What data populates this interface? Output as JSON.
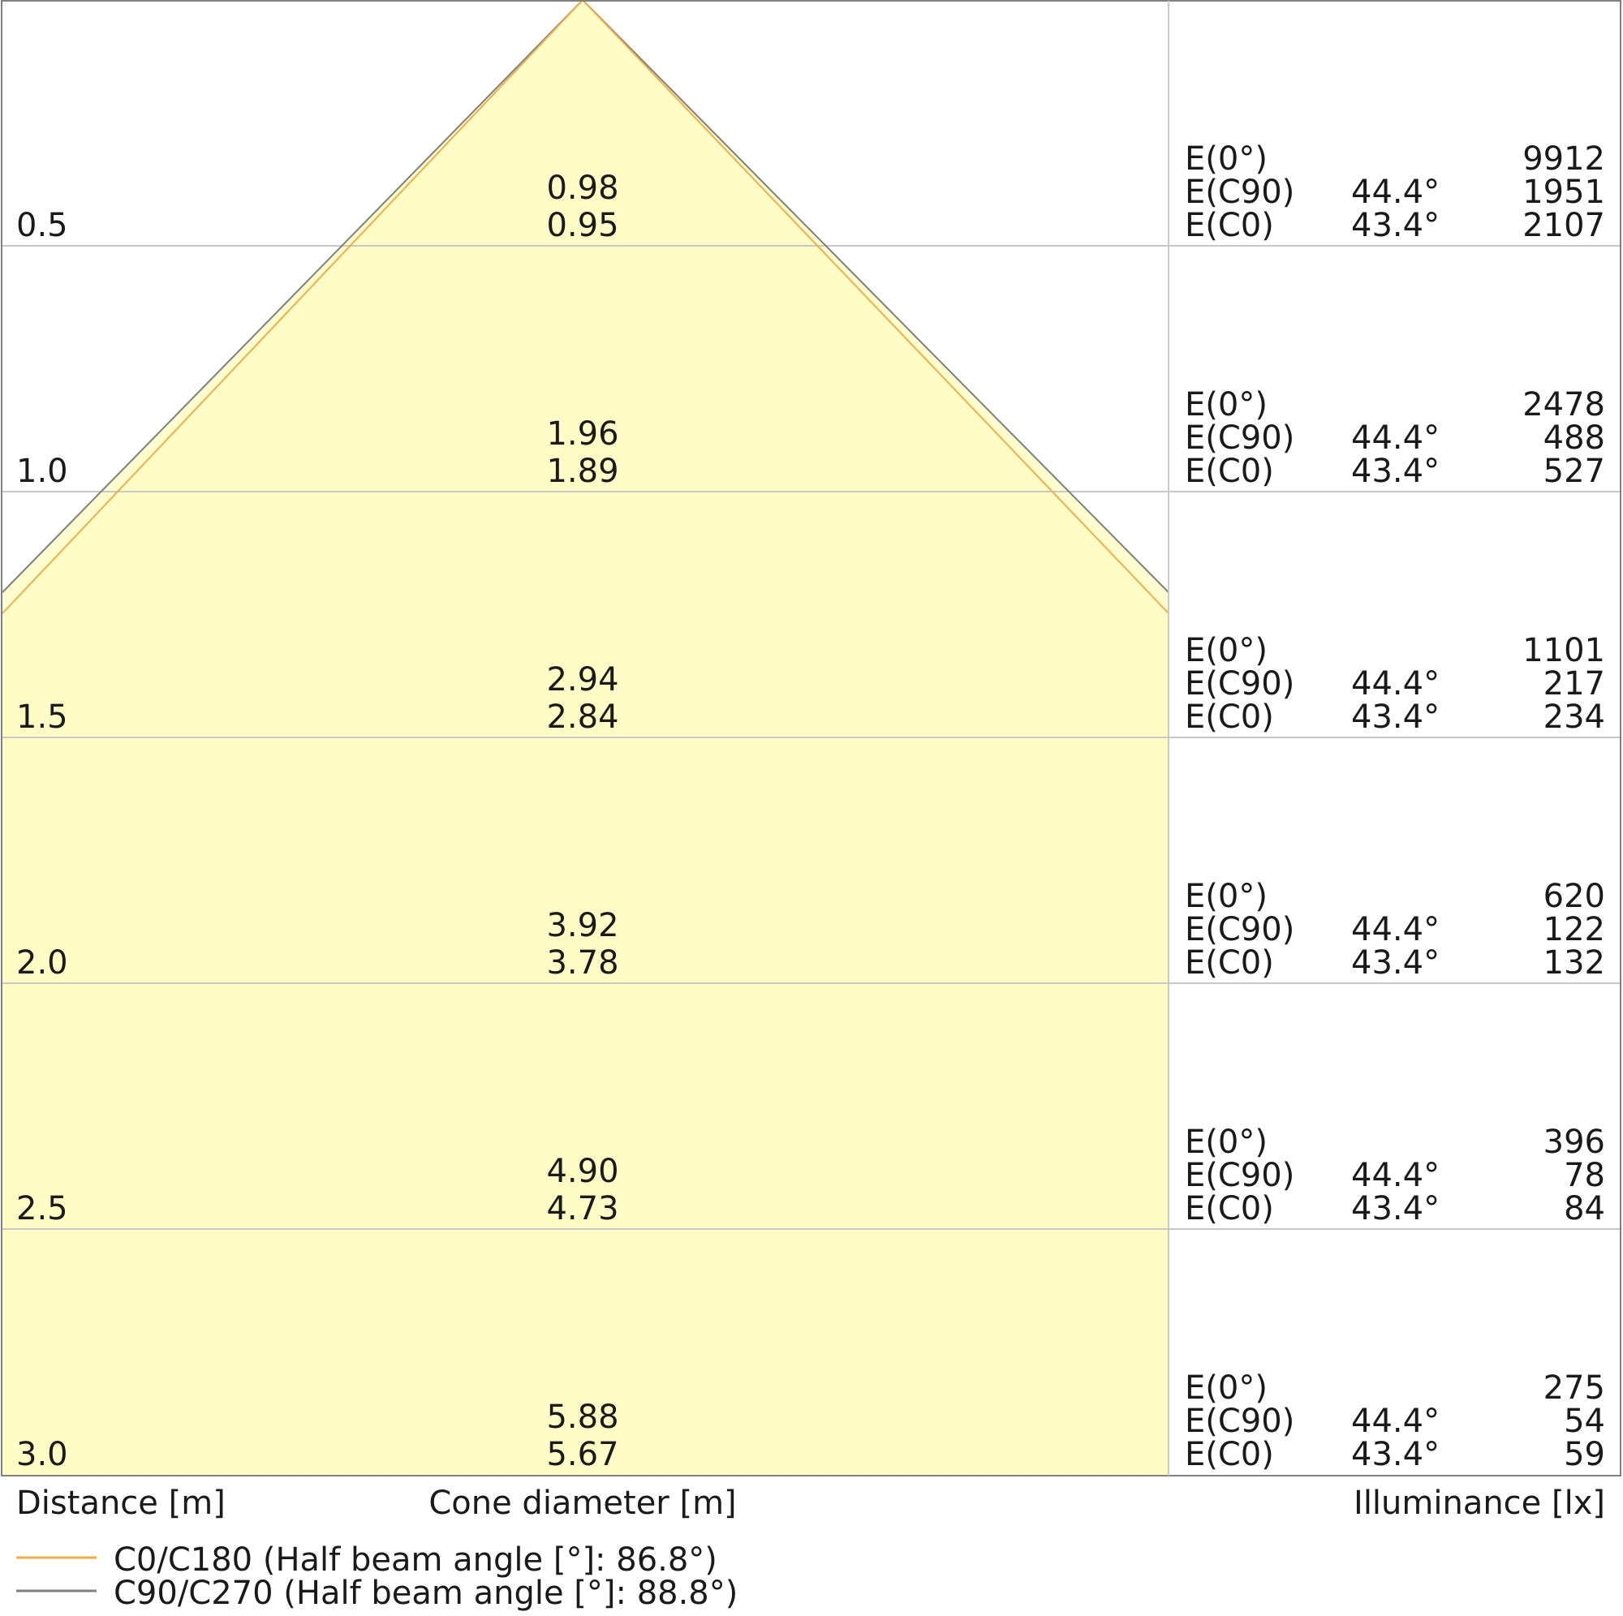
{
  "chart_data": {
    "type": "cone-diagram",
    "xlabel_left": "Distance [m]",
    "xlabel_center": "Cone diameter [m]",
    "xlabel_right": "Illuminance [lx]",
    "ylim": [
      0,
      3.0
    ],
    "grid": true,
    "fill_color": "#fffcc4",
    "series": [
      {
        "name": "C0/C180 (Half beam angle [°]: 86.8°)",
        "color": "#f0ae4a",
        "half_angle": 43.4
      },
      {
        "name": "C90/C270 (Half beam angle [°]: 88.8°)",
        "color": "#7f7f7f",
        "half_angle": 44.4
      }
    ],
    "rows": [
      {
        "distance": "0.5",
        "d_c90": "0.98",
        "d_c0": "0.95",
        "e0": "9912",
        "ec90": "1951",
        "ec0": "2107"
      },
      {
        "distance": "1.0",
        "d_c90": "1.96",
        "d_c0": "1.89",
        "e0": "2478",
        "ec90": "488",
        "ec0": "527"
      },
      {
        "distance": "1.5",
        "d_c90": "2.94",
        "d_c0": "2.84",
        "e0": "1101",
        "ec90": "217",
        "ec0": "234"
      },
      {
        "distance": "2.0",
        "d_c90": "3.92",
        "d_c0": "3.78",
        "e0": "620",
        "ec90": "122",
        "ec0": "132"
      },
      {
        "distance": "2.5",
        "d_c90": "4.90",
        "d_c0": "4.73",
        "e0": "396",
        "ec90": "78",
        "ec0": "84"
      },
      {
        "distance": "3.0",
        "d_c90": "5.88",
        "d_c0": "5.67",
        "e0": "275",
        "ec90": "54",
        "ec0": "59"
      }
    ],
    "row_labels": {
      "e0": "E(0°)",
      "ec90": "E(C90)",
      "ec0": "E(C0)",
      "angle_c90": "44.4°",
      "angle_c0": "43.4°"
    }
  }
}
